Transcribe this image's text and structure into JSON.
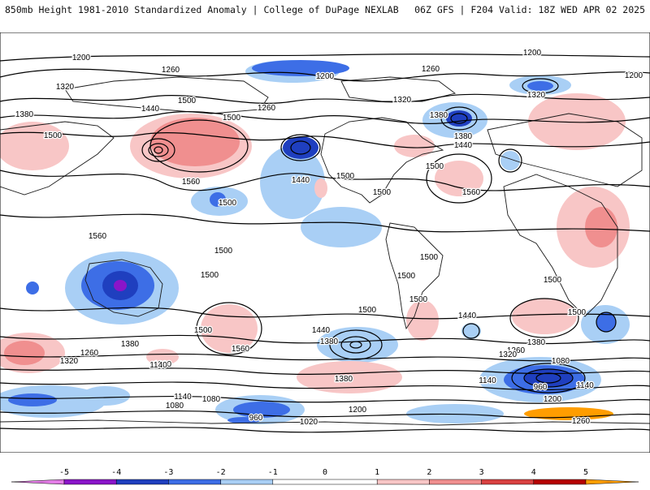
{
  "header": {
    "left": "850mb Height 1981-2010 Standardized Anomaly | College of DuPage NEXLAB",
    "right": "06Z GFS | F204 Valid: 18Z WED APR 02 2025"
  },
  "colors": {
    "n5": "#e37ce6",
    "n4": "#8a15c9",
    "n3": "#1f3fbf",
    "n2": "#3d6ee6",
    "n1": "#a9cff5",
    "p1": "#f8c6c6",
    "p2": "#f08f8f",
    "p3": "#d94141",
    "p4": "#b50000",
    "p5": "#ff9d00",
    "land": "#1a1a1a",
    "contour": "#000000"
  },
  "colorbar": {
    "ticks": [
      "-5",
      "-4",
      "-3",
      "-2",
      "-1",
      "0",
      "1",
      "2",
      "3",
      "4",
      "5"
    ]
  },
  "contour_labels": [
    "1200",
    "1260",
    "1200",
    "1320",
    "1380",
    "1440",
    "1500",
    "1500",
    "1560",
    "1500",
    "1380",
    "1320",
    "1200",
    "1260",
    "1320",
    "1200",
    "1260",
    "1440",
    "1380",
    "1500",
    "1560",
    "1440",
    "1500",
    "1500",
    "1500",
    "1500",
    "1500",
    "1500",
    "1560",
    "1500",
    "1500",
    "1500",
    "1500",
    "1440",
    "1380",
    "1380",
    "1320",
    "1260",
    "1200",
    "1140",
    "1080",
    "1020",
    "960",
    "1140",
    "1080",
    "960",
    "1140",
    "1200",
    "1260",
    "1320",
    "1380",
    "1440",
    "1500",
    "1560",
    "1500",
    "1140",
    "1200",
    "1080",
    "1260",
    "1380"
  ]
}
